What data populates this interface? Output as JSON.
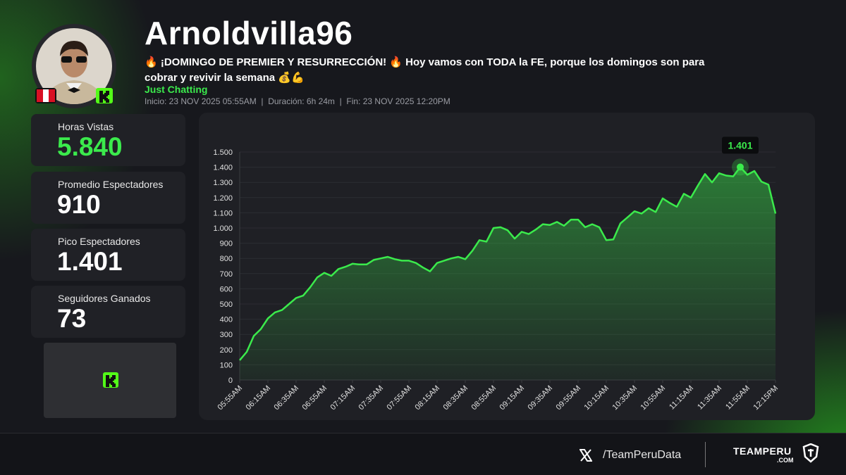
{
  "header": {
    "name": "Arnoldvilla96",
    "description": "🔥 ¡DOMINGO DE PREMIER Y RESURRECCIÓN! 🔥 Hoy vamos con TODA la FE, porque los domingos son para cobrar y revivir la semana 💰💪",
    "category": "Just Chatting",
    "info": "Inicio: 23 NOV 2025 05:55AM  |  Duración: 6h 24m  |  Fin: 23 NOV 2025 12:20PM"
  },
  "stats": [
    {
      "label": "Horas Vistas",
      "value": "5.840"
    },
    {
      "label": "Promedio Espectadores",
      "value": "910"
    },
    {
      "label": "Pico Espectadores",
      "value": "1.401"
    },
    {
      "label": "Seguidores Ganados",
      "value": "73"
    }
  ],
  "chart_data": {
    "type": "line",
    "color": "#3bea4c",
    "categories": [
      "05:55AM",
      null,
      null,
      null,
      "06:15AM",
      null,
      null,
      null,
      "06:35AM",
      null,
      null,
      null,
      "06:55AM",
      null,
      null,
      null,
      "07:15AM",
      null,
      null,
      null,
      "07:35AM",
      null,
      null,
      null,
      "07:55AM",
      null,
      null,
      null,
      "08:15AM",
      null,
      null,
      null,
      "08:35AM",
      null,
      null,
      null,
      "08:55AM",
      null,
      null,
      null,
      "09:15AM",
      null,
      null,
      null,
      "09:35AM",
      null,
      null,
      null,
      "09:55AM",
      null,
      null,
      null,
      "10:15AM",
      null,
      null,
      null,
      "10:35AM",
      null,
      null,
      null,
      "10:55AM",
      null,
      null,
      null,
      "11:15AM",
      null,
      null,
      null,
      "11:35AM",
      null,
      null,
      null,
      "11:55AM",
      null,
      null,
      null,
      "12:15PM"
    ],
    "values": [
      130,
      185,
      290,
      335,
      405,
      445,
      460,
      500,
      540,
      555,
      610,
      675,
      705,
      685,
      730,
      745,
      765,
      760,
      760,
      790,
      800,
      810,
      795,
      785,
      785,
      770,
      740,
      715,
      770,
      785,
      800,
      810,
      795,
      850,
      920,
      910,
      1000,
      1005,
      985,
      930,
      975,
      960,
      990,
      1025,
      1020,
      1040,
      1015,
      1055,
      1055,
      1005,
      1025,
      1005,
      920,
      925,
      1030,
      1070,
      1110,
      1095,
      1130,
      1105,
      1195,
      1165,
      1140,
      1225,
      1200,
      1280,
      1355,
      1300,
      1360,
      1345,
      1340,
      1401,
      1350,
      1375,
      1305,
      1285,
      1095
    ],
    "value_labels": [
      null,
      null,
      null,
      null,
      null,
      null,
      null,
      null,
      null,
      null,
      null,
      null,
      null,
      null,
      null,
      null,
      null,
      null,
      null,
      null,
      null,
      null,
      null,
      null,
      null,
      null,
      null,
      null,
      null,
      null,
      null,
      null,
      null,
      null,
      null,
      null,
      null,
      null,
      null,
      null,
      null,
      null,
      null,
      null,
      null,
      null,
      null,
      null,
      null,
      null,
      null,
      null,
      null,
      null,
      null,
      null,
      null,
      null,
      null,
      null,
      null,
      null,
      null,
      null,
      null,
      null,
      null,
      null,
      null,
      null,
      null,
      "1.401",
      null,
      null,
      null,
      null,
      null
    ],
    "ylim": [
      0,
      1500
    ],
    "yticks": [
      0,
      100,
      200,
      300,
      400,
      500,
      600,
      700,
      800,
      900,
      {
        "value": 1000,
        "label": "1.000"
      },
      {
        "value": 1100,
        "label": "1.100"
      },
      {
        "value": 1200,
        "label": "1.200"
      },
      {
        "value": 1300,
        "label": "1.300"
      },
      {
        "value": 1400,
        "label": "1.400"
      },
      {
        "value": 1500,
        "label": "1.500"
      }
    ],
    "grid": true
  },
  "footer": {
    "handle": "/TeamPeruData",
    "brand": "TEAMPERU",
    "brand_domain": ".COM"
  }
}
